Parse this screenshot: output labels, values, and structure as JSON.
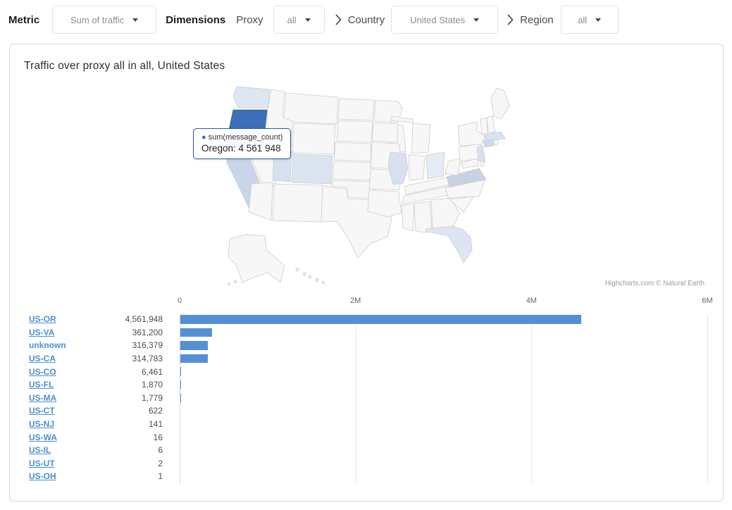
{
  "toolbar": {
    "metric_label": "Metric",
    "metric_value": "Sum of traffic",
    "dimensions_label": "Dimensions",
    "proxy_label": "Proxy",
    "proxy_value": "all",
    "country_label": "Country",
    "country_value": "United States",
    "region_label": "Region",
    "region_value": "all"
  },
  "panel": {
    "title": "Traffic over proxy all in all, United States",
    "credits": "Highcharts.com © Natural Earth"
  },
  "map": {
    "type": "choropleth-us-states",
    "tooltip": {
      "bullet": "●",
      "bullet_color": "#3b70b8",
      "series_label": "sum(message_count)",
      "text": "Oregon: 4 561 948"
    },
    "highlights": [
      {
        "id": "or",
        "name": "Oregon",
        "color": "#3b70b8",
        "stroke": "#2d5a99"
      },
      {
        "id": "wa",
        "name": "Washington",
        "color": "#dde7f3"
      },
      {
        "id": "ca",
        "name": "California",
        "color": "#c9d6e9"
      },
      {
        "id": "ut",
        "name": "Utah",
        "color": "#d6e0f0"
      },
      {
        "id": "co",
        "name": "Colorado",
        "color": "#dbe5f2"
      },
      {
        "id": "il",
        "name": "Illinois",
        "color": "#d6e0f0"
      },
      {
        "id": "oh",
        "name": "Ohio",
        "color": "#e4ebf6"
      },
      {
        "id": "va",
        "name": "Virginia",
        "color": "#c6d3e7"
      },
      {
        "id": "fl",
        "name": "Florida",
        "color": "#dce6f3"
      },
      {
        "id": "ma",
        "name": "Massachusetts",
        "color": "#d8e2f0"
      },
      {
        "id": "ct",
        "name": "Connecticut",
        "color": "#ccd9ec"
      },
      {
        "id": "nj",
        "name": "New Jersey",
        "color": "#d6e0f0"
      }
    ]
  },
  "chart_data": {
    "type": "bar",
    "title": "Traffic over proxy all in all, United States",
    "series_name": "sum(message_count)",
    "categories": [
      "US-OR",
      "US-VA",
      "unknown",
      "US-CA",
      "US-CO",
      "US-FL",
      "US-MA",
      "US-CT",
      "US-NJ",
      "US-WA",
      "US-IL",
      "US-UT",
      "US-OH"
    ],
    "values": [
      4561948,
      361200,
      316379,
      314783,
      6461,
      1870,
      1779,
      622,
      141,
      16,
      6,
      2,
      1
    ],
    "value_labels": [
      "4,561,948",
      "361,200",
      "316,379",
      "314,783",
      "6,461",
      "1,870",
      "1,779",
      "622",
      "141",
      "16",
      "6",
      "2",
      "1"
    ],
    "links": [
      true,
      true,
      false,
      true,
      true,
      true,
      true,
      true,
      true,
      true,
      true,
      true,
      true
    ],
    "xlim": [
      0,
      6000000
    ],
    "ticks": [
      {
        "label": "0",
        "pos": 0
      },
      {
        "label": "2M",
        "pos": 33.333
      },
      {
        "label": "4M",
        "pos": 66.667
      },
      {
        "label": "6M",
        "pos": 100
      }
    ],
    "bar_color": "#5590d5",
    "grid": true,
    "legend": "none"
  }
}
